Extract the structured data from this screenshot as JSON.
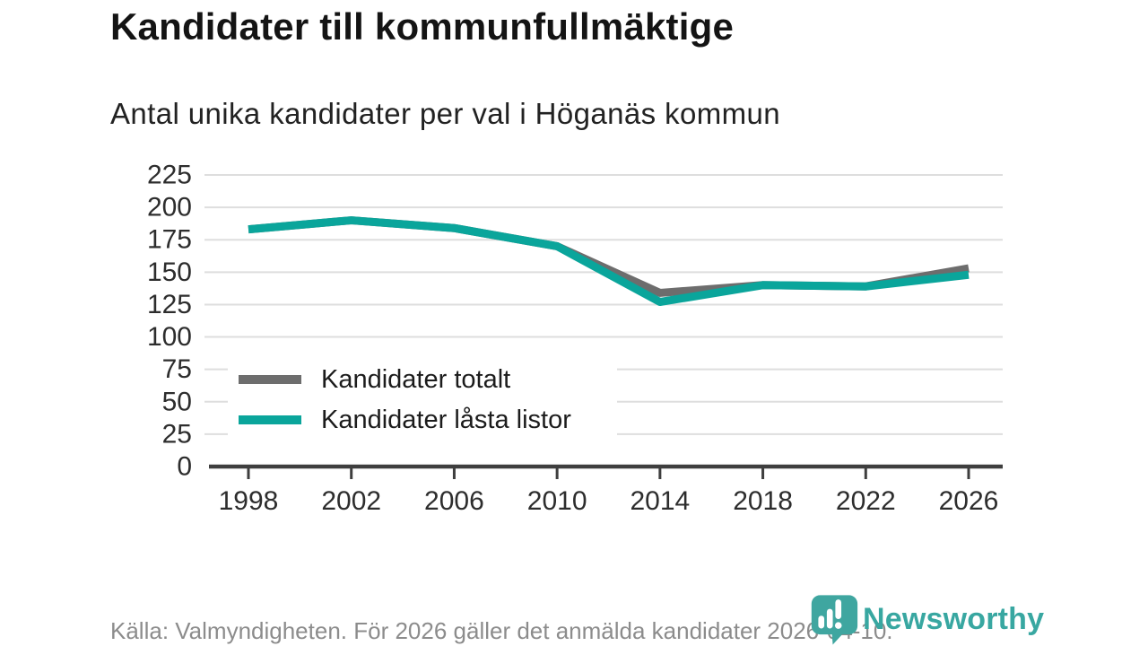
{
  "header": {
    "title": "Kandidater till kommunfullmäktige",
    "subtitle": "Antal unika kandidater per val i Höganäs kommun"
  },
  "chart_data": {
    "type": "line",
    "categories": [
      "1998",
      "2002",
      "2006",
      "2010",
      "2014",
      "2018",
      "2022",
      "2026"
    ],
    "series": [
      {
        "name": "Kandidater totalt",
        "color": "#6d6d6d",
        "values": [
          183,
          190,
          184,
          170,
          134,
          140,
          139,
          153
        ]
      },
      {
        "name": "Kandidater låsta listor",
        "color": "#0aa59b",
        "values": [
          183,
          190,
          184,
          170,
          127,
          140,
          139,
          148
        ]
      }
    ],
    "ylim": [
      0,
      225
    ],
    "ytick_step": 25,
    "xlabel": "",
    "ylabel": "",
    "grid": "horizontal",
    "legend_position": "inside-left"
  },
  "footer": {
    "source": "Källa: Valmyndigheten. För 2026 gäller det anmälda kandidater 2026-04-10.",
    "brand": "Newsworthy"
  },
  "colors": {
    "grid": "#dedede",
    "axis": "#3e3e3e",
    "tick_label": "#2d2d2d",
    "legend_label": "#1c1c1c",
    "legend_bg": "#ffffff",
    "brand_teal": "#38a7a1",
    "accent_teal": "#0aa59b",
    "series_gray": "#6d6d6d"
  }
}
